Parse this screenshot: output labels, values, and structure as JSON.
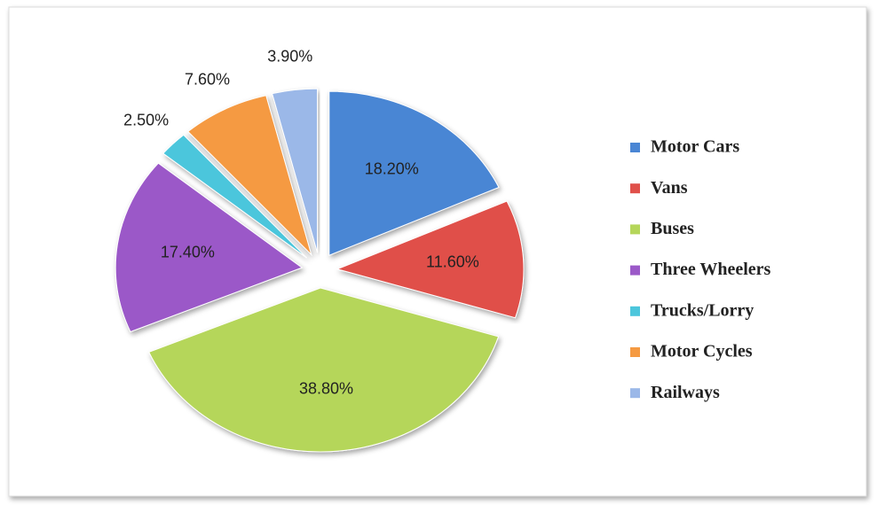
{
  "chart_data": {
    "type": "pie",
    "categories": [
      "Motor Cars",
      "Vans",
      "Buses",
      "Three Wheelers",
      "Trucks/Lorry",
      "Motor Cycles",
      "Railways"
    ],
    "values": [
      18.2,
      11.6,
      38.8,
      17.4,
      2.5,
      7.6,
      3.9
    ],
    "value_labels": [
      "18.20%",
      "11.60%",
      "38.80%",
      "17.40%",
      "2.50%",
      "7.60%",
      "3.90%"
    ],
    "colors": [
      "#4a86d4",
      "#e0504a",
      "#b5d65a",
      "#9b59c8",
      "#4cc6dc",
      "#f59a42",
      "#9bb8e8"
    ],
    "legend": "right"
  }
}
